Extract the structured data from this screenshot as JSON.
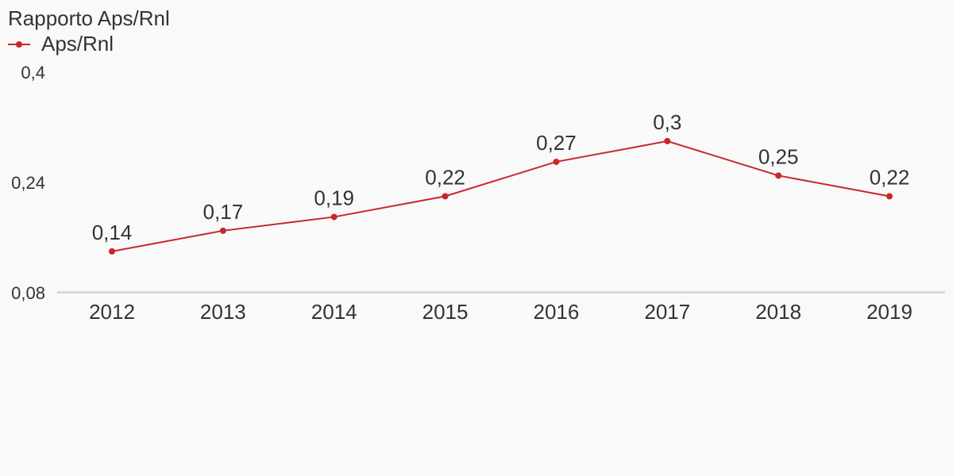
{
  "colors": {
    "background": "#f9f9f9",
    "series": "#c8262c",
    "axis": "#d9d9d9",
    "text": "#333333"
  },
  "chart_data": {
    "type": "line",
    "title": "Rapporto Aps/Rnl",
    "xlabel": "",
    "ylabel": "",
    "categories": [
      "2012",
      "2013",
      "2014",
      "2015",
      "2016",
      "2017",
      "2018",
      "2019"
    ],
    "series": [
      {
        "name": "Aps/Rnl",
        "values": [
          0.14,
          0.17,
          0.19,
          0.22,
          0.27,
          0.3,
          0.25,
          0.22
        ],
        "labels": [
          "0,14",
          "0,17",
          "0,19",
          "0,22",
          "0,27",
          "0,3",
          "0,25",
          "0,22"
        ]
      }
    ],
    "ylim": [
      0.08,
      0.4
    ],
    "yticks": [
      0.08,
      0.24,
      0.4
    ],
    "ytick_labels": [
      "0,08",
      "0,24",
      "0,4"
    ],
    "grid": false,
    "legend": "top-left",
    "markers": true
  }
}
